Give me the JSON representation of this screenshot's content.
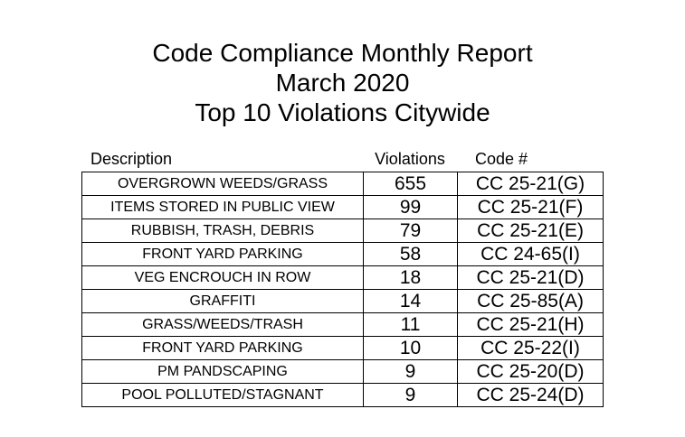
{
  "title": {
    "line1": "Code Compliance Monthly Report",
    "line2": "March 2020",
    "line3": "Top 10 Violations Citywide"
  },
  "table": {
    "headers": [
      "Description",
      "Violations",
      "Code #"
    ],
    "rows": [
      {
        "description": "OVERGROWN WEEDS/GRASS",
        "violations": "655",
        "code": "CC 25-21(G)"
      },
      {
        "description": "ITEMS STORED IN PUBLIC VIEW",
        "violations": "99",
        "code": "CC 25-21(F)"
      },
      {
        "description": "RUBBISH, TRASH, DEBRIS",
        "violations": "79",
        "code": "CC 25-21(E)"
      },
      {
        "description": "FRONT YARD PARKING",
        "violations": "58",
        "code": "CC 24-65(I)"
      },
      {
        "description": "VEG ENCROUCH IN ROW",
        "violations": "18",
        "code": "CC 25-21(D)"
      },
      {
        "description": "GRAFFITI",
        "violations": "14",
        "code": "CC 25-85(A)"
      },
      {
        "description": "GRASS/WEEDS/TRASH",
        "violations": "11",
        "code": "CC 25-21(H)"
      },
      {
        "description": "FRONT YARD PARKING",
        "violations": "10",
        "code": "CC 25-22(I)"
      },
      {
        "description": "PM PANDSCAPING",
        "violations": "9",
        "code": "CC 25-20(D)"
      },
      {
        "description": "POOL POLLUTED/STAGNANT",
        "violations": "9",
        "code": "CC 25-24(D)"
      }
    ]
  },
  "colors": {
    "background": "#ffffff",
    "text": "#000000",
    "border": "#000000"
  }
}
